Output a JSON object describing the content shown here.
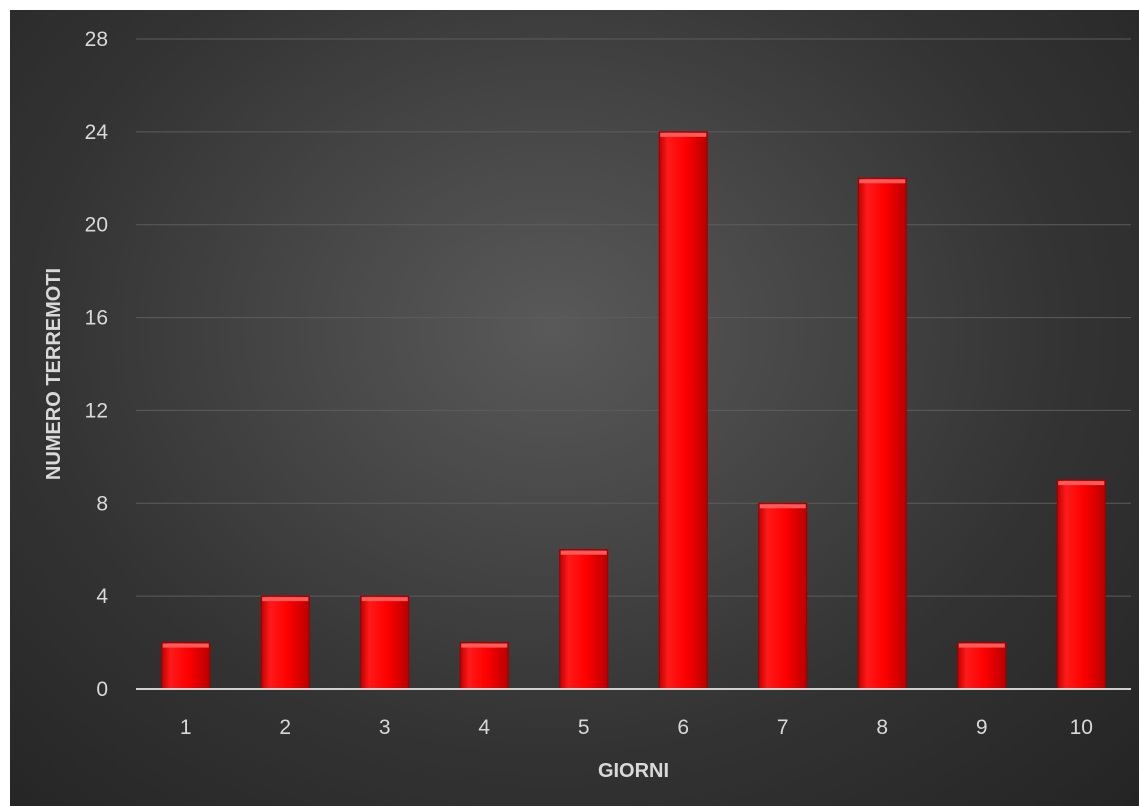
{
  "chart_data": {
    "type": "bar",
    "title": "",
    "xlabel": "GIORNI",
    "ylabel": "NUMERO TERREMOTI",
    "categories": [
      "1",
      "2",
      "3",
      "4",
      "5",
      "6",
      "7",
      "8",
      "9",
      "10"
    ],
    "values": [
      2,
      4,
      4,
      2,
      6,
      24,
      8,
      22,
      2,
      9
    ],
    "ylim": [
      0,
      28
    ],
    "yticks": [
      "0",
      "4",
      "8",
      "12",
      "16",
      "20",
      "24",
      "28"
    ],
    "grid": true,
    "legend": "none",
    "colors": {
      "bar": "#ff0000",
      "bar_dark": "#b80000",
      "bar_top": "#ff5a5a",
      "background": "#404040",
      "text": "#d9d9d9",
      "grid": "#5c5c5c",
      "baseline": "#d0d0d0"
    }
  }
}
